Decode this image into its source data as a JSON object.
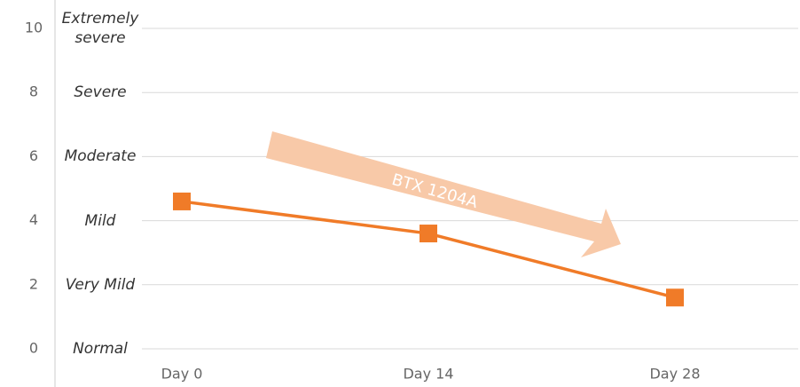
{
  "chart_data": {
    "type": "line",
    "categories": [
      "Day 0",
      "Day 14",
      "Day 28"
    ],
    "series": [
      {
        "name": "BTX 1204A",
        "color": "#f07b28",
        "values": [
          4.6,
          3.6,
          1.6
        ]
      }
    ],
    "ylim": [
      0,
      10
    ],
    "yticks": [
      0,
      2,
      4,
      6,
      8,
      10
    ],
    "y_tick_descriptions": [
      "Normal",
      "Very Mild",
      "Mild",
      "Moderate",
      "Severe",
      "Extremely severe"
    ],
    "annotation": "BTX 1204A",
    "grid": true
  }
}
